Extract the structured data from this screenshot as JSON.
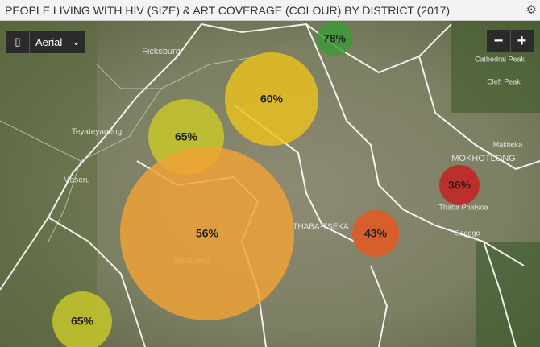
{
  "header": {
    "title": "PEOPLE LIVING WITH HIV (SIZE) & ART COVERAGE (COLOUR) BY DISTRICT (2017)"
  },
  "controls": {
    "map_style": "Aerial",
    "zoom_out": "−",
    "zoom_in": "+"
  },
  "places": [
    "Ficksburg",
    "Teyateyaneng",
    "Maseru",
    "MASERU",
    "THABA-TSEKA",
    "MOKHOTLONG",
    "Cathedral Peak",
    "Cleft Peak",
    "Makheka",
    "Thaba Phatsoa",
    "Sagogo"
  ],
  "bubbles": [
    {
      "label": "78%",
      "color": "#3c9a34"
    },
    {
      "label": "60%",
      "color": "#ebc21f"
    },
    {
      "label": "65%",
      "color": "#c9c92a"
    },
    {
      "label": "56%",
      "color": "#f2a234"
    },
    {
      "label": "43%",
      "color": "#e8571f"
    },
    {
      "label": "36%",
      "color": "#c91f1f"
    },
    {
      "label": "65%",
      "color": "#c9c92a"
    }
  ]
}
